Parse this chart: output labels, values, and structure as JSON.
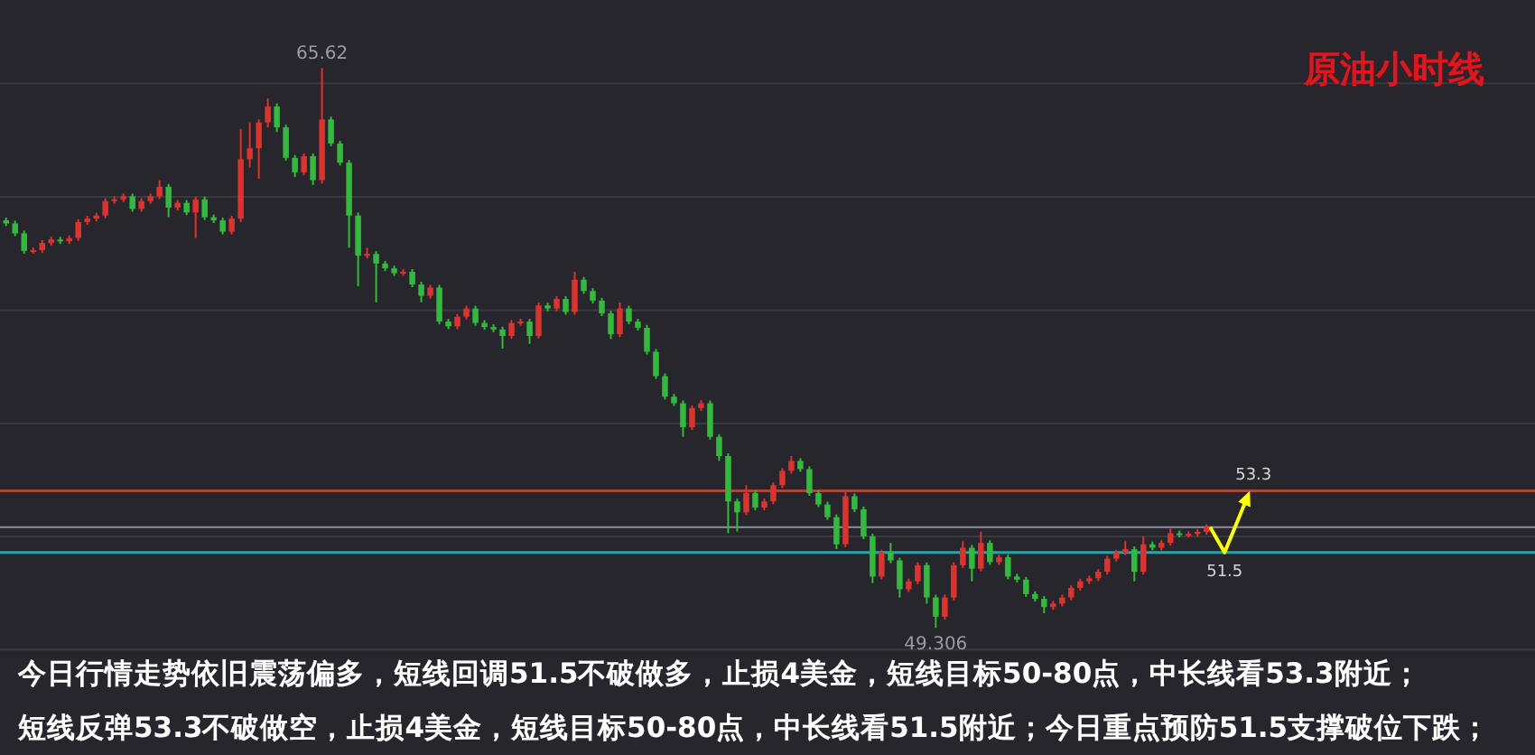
{
  "chart_data": {
    "type": "candlestick",
    "title": "原油小时线",
    "categories": [
      null,
      null,
      null,
      null,
      null,
      null,
      null,
      null,
      null,
      null,
      null,
      null,
      null,
      null,
      null,
      null,
      null,
      null,
      null,
      null,
      null,
      null,
      null,
      null,
      null,
      null,
      null,
      null,
      null,
      null,
      null,
      null,
      null,
      null,
      null,
      null,
      null,
      null,
      null,
      null,
      null,
      null,
      null,
      null,
      null,
      null,
      null,
      null,
      null,
      null,
      null,
      null,
      null,
      null,
      null,
      null,
      null,
      null,
      null,
      null,
      null,
      null,
      null,
      null,
      null,
      null,
      null,
      null,
      null,
      null,
      null,
      null,
      null,
      null,
      null,
      null,
      null,
      null,
      null,
      null,
      null,
      null,
      null,
      null,
      null,
      null,
      null,
      null,
      null,
      null,
      null,
      null,
      null,
      null,
      null,
      null,
      null,
      null,
      null,
      null,
      null,
      null,
      null,
      null,
      null,
      null,
      null,
      null,
      null,
      null,
      null,
      null,
      null,
      null,
      null,
      null,
      null,
      null,
      null,
      null,
      null,
      null,
      null,
      null,
      null,
      null,
      null,
      null,
      null,
      null,
      null,
      null,
      null,
      null
    ],
    "ohlc": [
      [
        61.18,
        61.26,
        61.01,
        61.09
      ],
      [
        61.09,
        61.17,
        60.72,
        60.8
      ],
      [
        60.8,
        60.88,
        60.21,
        60.29
      ],
      [
        60.29,
        60.39,
        60.21,
        60.31
      ],
      [
        60.31,
        60.6,
        60.23,
        60.52
      ],
      [
        60.52,
        60.7,
        60.44,
        60.62
      ],
      [
        60.62,
        60.7,
        60.49,
        60.57
      ],
      [
        60.57,
        60.74,
        60.49,
        60.66
      ],
      [
        60.66,
        61.21,
        60.58,
        61.13
      ],
      [
        61.13,
        61.31,
        61.05,
        61.23
      ],
      [
        61.23,
        61.4,
        61.15,
        61.32
      ],
      [
        61.32,
        61.82,
        61.24,
        61.74
      ],
      [
        61.74,
        61.87,
        61.66,
        61.79
      ],
      [
        61.79,
        61.96,
        61.71,
        61.88
      ],
      [
        61.88,
        61.96,
        61.43,
        61.51
      ],
      [
        61.51,
        61.82,
        61.43,
        61.74
      ],
      [
        61.74,
        61.96,
        61.66,
        61.88
      ],
      [
        61.88,
        62.35,
        61.8,
        62.16
      ],
      [
        62.16,
        62.24,
        61.27,
        61.55
      ],
      [
        61.55,
        61.77,
        61.47,
        61.69
      ],
      [
        61.69,
        61.77,
        61.33,
        61.41
      ],
      [
        61.41,
        61.87,
        60.66,
        61.79
      ],
      [
        61.79,
        61.87,
        61.19,
        61.27
      ],
      [
        61.27,
        61.35,
        61.1,
        61.18
      ],
      [
        61.18,
        61.26,
        60.77,
        60.85
      ],
      [
        60.85,
        61.31,
        60.77,
        61.23
      ],
      [
        61.23,
        63.84,
        61.13,
        62.96
      ],
      [
        62.96,
        64.03,
        62.72,
        63.28
      ],
      [
        63.28,
        64.12,
        62.39,
        64.03
      ],
      [
        64.03,
        64.73,
        63.89,
        64.5
      ],
      [
        64.5,
        64.59,
        63.75,
        63.89
      ],
      [
        63.89,
        63.97,
        62.92,
        63.0
      ],
      [
        63.0,
        63.08,
        62.44,
        62.58
      ],
      [
        62.58,
        63.13,
        62.5,
        63.05
      ],
      [
        63.05,
        63.13,
        62.21,
        62.35
      ],
      [
        62.35,
        65.62,
        62.25,
        64.12
      ],
      [
        64.12,
        64.2,
        63.34,
        63.42
      ],
      [
        63.42,
        63.5,
        62.78,
        62.86
      ],
      [
        62.86,
        62.94,
        60.38,
        61.32
      ],
      [
        61.32,
        61.41,
        59.26,
        60.15
      ],
      [
        60.15,
        60.38,
        60.07,
        60.2
      ],
      [
        60.2,
        60.28,
        58.79,
        59.92
      ],
      [
        59.92,
        60.0,
        59.7,
        59.78
      ],
      [
        59.78,
        59.86,
        59.56,
        59.64
      ],
      [
        59.64,
        59.76,
        59.56,
        59.68
      ],
      [
        59.68,
        59.76,
        59.23,
        59.31
      ],
      [
        59.31,
        59.39,
        58.79,
        58.98
      ],
      [
        58.98,
        59.3,
        58.9,
        59.22
      ],
      [
        59.22,
        59.3,
        58.15,
        58.23
      ],
      [
        58.23,
        58.31,
        58.01,
        58.09
      ],
      [
        58.09,
        58.45,
        58.01,
        58.37
      ],
      [
        58.37,
        58.69,
        58.29,
        58.61
      ],
      [
        58.61,
        58.69,
        58.11,
        58.19
      ],
      [
        58.19,
        58.27,
        57.99,
        58.07
      ],
      [
        58.07,
        58.15,
        57.92,
        58.0
      ],
      [
        58.0,
        58.08,
        57.44,
        57.81
      ],
      [
        57.81,
        58.27,
        57.73,
        58.19
      ],
      [
        58.19,
        58.31,
        58.11,
        58.23
      ],
      [
        58.23,
        58.31,
        57.58,
        57.81
      ],
      [
        57.81,
        58.78,
        57.73,
        58.7
      ],
      [
        58.7,
        58.78,
        58.53,
        58.61
      ],
      [
        58.61,
        58.97,
        58.53,
        58.89
      ],
      [
        58.89,
        58.97,
        58.43,
        58.51
      ],
      [
        58.51,
        59.68,
        58.43,
        59.45
      ],
      [
        59.45,
        59.53,
        59.04,
        59.12
      ],
      [
        59.12,
        59.2,
        58.76,
        58.84
      ],
      [
        58.84,
        58.92,
        58.39,
        58.47
      ],
      [
        58.47,
        58.55,
        57.72,
        57.86
      ],
      [
        57.86,
        58.79,
        57.78,
        58.61
      ],
      [
        58.61,
        58.69,
        58.15,
        58.23
      ],
      [
        58.23,
        58.31,
        57.97,
        58.05
      ],
      [
        58.05,
        58.13,
        57.27,
        57.35
      ],
      [
        57.35,
        57.43,
        56.56,
        56.64
      ],
      [
        56.64,
        56.72,
        55.96,
        56.04
      ],
      [
        56.04,
        56.12,
        55.77,
        55.85
      ],
      [
        55.85,
        55.93,
        54.87,
        55.15
      ],
      [
        55.15,
        55.79,
        55.07,
        55.71
      ],
      [
        55.71,
        55.94,
        55.63,
        55.85
      ],
      [
        55.85,
        55.93,
        54.79,
        54.87
      ],
      [
        54.87,
        54.95,
        54.17,
        54.31
      ],
      [
        54.31,
        54.39,
        52.06,
        52.99
      ],
      [
        52.99,
        53.07,
        52.11,
        52.67
      ],
      [
        52.67,
        53.46,
        52.59,
        53.23
      ],
      [
        53.23,
        53.31,
        52.73,
        52.81
      ],
      [
        52.81,
        53.07,
        52.73,
        52.99
      ],
      [
        52.99,
        53.54,
        52.91,
        53.46
      ],
      [
        53.46,
        53.96,
        53.38,
        53.88
      ],
      [
        53.88,
        54.31,
        53.8,
        54.17
      ],
      [
        54.17,
        54.25,
        53.85,
        53.93
      ],
      [
        53.93,
        54.01,
        53.15,
        53.23
      ],
      [
        53.23,
        53.31,
        52.82,
        52.9
      ],
      [
        52.9,
        52.98,
        52.45,
        52.53
      ],
      [
        52.53,
        52.61,
        51.6,
        51.74
      ],
      [
        51.74,
        53.32,
        51.66,
        53.14
      ],
      [
        53.14,
        53.22,
        52.68,
        52.76
      ],
      [
        52.76,
        52.84,
        51.89,
        51.97
      ],
      [
        51.97,
        52.05,
        50.61,
        50.8
      ],
      [
        50.8,
        51.58,
        50.72,
        51.5
      ],
      [
        51.5,
        51.78,
        51.19,
        51.27
      ],
      [
        51.27,
        51.35,
        50.19,
        50.43
      ],
      [
        50.43,
        50.74,
        50.35,
        50.66
      ],
      [
        50.66,
        51.21,
        50.58,
        51.13
      ],
      [
        51.13,
        51.21,
        50.01,
        50.19
      ],
      [
        50.19,
        50.27,
        49.306,
        49.63
      ],
      [
        49.63,
        50.27,
        49.55,
        50.19
      ],
      [
        50.19,
        51.21,
        50.11,
        51.13
      ],
      [
        51.13,
        51.83,
        51.05,
        51.64
      ],
      [
        51.64,
        51.72,
        50.66,
        51.03
      ],
      [
        51.03,
        52.11,
        50.95,
        51.78
      ],
      [
        51.78,
        51.86,
        51.14,
        51.22
      ],
      [
        51.22,
        51.44,
        51.14,
        51.36
      ],
      [
        51.36,
        51.44,
        50.72,
        50.8
      ],
      [
        50.8,
        50.88,
        50.63,
        50.71
      ],
      [
        50.71,
        50.79,
        50.21,
        50.29
      ],
      [
        50.29,
        50.37,
        50.07,
        50.15
      ],
      [
        50.15,
        50.23,
        49.73,
        49.91
      ],
      [
        49.91,
        50.09,
        49.83,
        50.01
      ],
      [
        50.01,
        50.27,
        49.93,
        50.19
      ],
      [
        50.19,
        50.55,
        50.11,
        50.47
      ],
      [
        50.47,
        50.74,
        50.39,
        50.66
      ],
      [
        50.66,
        50.83,
        50.58,
        50.75
      ],
      [
        50.75,
        51.02,
        50.67,
        50.94
      ],
      [
        50.94,
        51.4,
        50.86,
        51.32
      ],
      [
        51.32,
        51.58,
        51.24,
        51.5
      ],
      [
        51.5,
        51.83,
        51.42,
        51.6
      ],
      [
        51.6,
        51.68,
        50.66,
        50.94
      ],
      [
        50.94,
        51.97,
        50.86,
        51.74
      ],
      [
        51.74,
        51.82,
        51.56,
        51.64
      ],
      [
        51.64,
        51.86,
        51.56,
        51.78
      ],
      [
        51.78,
        52.2,
        51.7,
        52.06
      ],
      [
        52.06,
        52.14,
        51.94,
        52.02
      ],
      [
        52.02,
        52.12,
        51.94,
        52.04
      ],
      [
        52.04,
        52.18,
        51.96,
        52.1
      ],
      [
        52.1,
        52.32,
        52.02,
        52.24
      ]
    ],
    "ylim": [
      45.6,
      67.6
    ],
    "yticks": [
      {
        "value": 65.17,
        "label": null
      },
      {
        "value": 61.86,
        "label": null
      },
      {
        "value": 58.56,
        "label": null
      },
      {
        "value": 55.26,
        "label": null
      },
      {
        "value": 51.97,
        "label": null
      },
      {
        "value": 48.67,
        "label": null
      }
    ],
    "grid": "y",
    "tick_labels": false,
    "ref_lines": [
      {
        "axis": "y",
        "value": 51.5,
        "label": "51.5",
        "color": "#2aa3ad"
      },
      {
        "axis": "y",
        "value": 53.3,
        "label": "53.3",
        "color": "#a8473a"
      },
      {
        "axis": "y",
        "value": 52.24,
        "color": "#8e8e9e"
      }
    ],
    "annotations": [
      {
        "text": "65.62",
        "y": 65.62
      },
      {
        "text": "49.306",
        "y": 49.306
      },
      "今日行情走势依旧震荡偏多，短线回调51.5不破做多，止损4美金，短线目标50-80点，中长线看53.3附近；",
      "短线反弹53.3不破做空，止损4美金，短线目标50-80点，中长线看51.5附近；今日重点预防51.5支撑破位下跌；"
    ]
  }
}
